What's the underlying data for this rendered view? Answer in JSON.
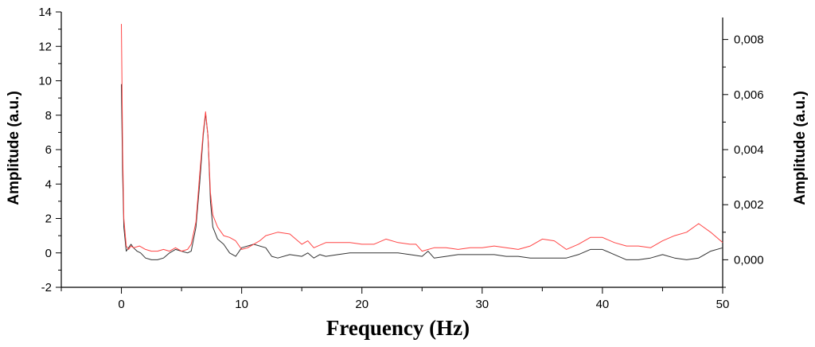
{
  "chart_data": {
    "type": "line",
    "title": "",
    "xlabel": "Frequency (Hz)",
    "ylabel_left": "Amplitude (a.u.)",
    "ylabel_right": "Amplitude (a.u.)",
    "xlim": [
      -5,
      50
    ],
    "ylim_left": [
      -2,
      14
    ],
    "ylim_right": [
      -0.001,
      0.009
    ],
    "x_ticks": [
      0,
      10,
      20,
      30,
      40,
      50
    ],
    "x_tick_labels": [
      "0",
      "10",
      "20",
      "30",
      "40",
      "50"
    ],
    "y_left_ticks": [
      -2,
      0,
      2,
      4,
      6,
      8,
      10,
      12,
      14
    ],
    "y_left_tick_labels": [
      "-2",
      "0",
      "2",
      "4",
      "6",
      "8",
      "10",
      "12",
      "14"
    ],
    "y_right_ticks": [
      0,
      0.002,
      0.004,
      0.006,
      0.008
    ],
    "y_right_tick_labels": [
      "0,000",
      "0,002",
      "0,004",
      "0,006",
      "0,008"
    ],
    "grid": false,
    "legend": "none",
    "series": [
      {
        "axis": "left",
        "color": "#333333",
        "points": [
          [
            0,
            9.8
          ],
          [
            0.1,
            4.5
          ],
          [
            0.2,
            1.5
          ],
          [
            0.4,
            0.1
          ],
          [
            0.6,
            0.3
          ],
          [
            0.8,
            0.5
          ],
          [
            1,
            0.3
          ],
          [
            1.3,
            0.1
          ],
          [
            1.6,
            0.0
          ],
          [
            2,
            -0.3
          ],
          [
            2.5,
            -0.4
          ],
          [
            3,
            -0.4
          ],
          [
            3.5,
            -0.3
          ],
          [
            4,
            0.0
          ],
          [
            4.5,
            0.2
          ],
          [
            5,
            0.1
          ],
          [
            5.5,
            0.0
          ],
          [
            5.8,
            0.1
          ],
          [
            6.2,
            1.5
          ],
          [
            6.5,
            4.0
          ],
          [
            6.8,
            6.8
          ],
          [
            7.0,
            8.1
          ],
          [
            7.2,
            6.8
          ],
          [
            7.4,
            3.0
          ],
          [
            7.6,
            1.5
          ],
          [
            8,
            0.8
          ],
          [
            8.5,
            0.5
          ],
          [
            9,
            0.0
          ],
          [
            9.5,
            -0.2
          ],
          [
            10,
            0.3
          ],
          [
            11,
            0.5
          ],
          [
            12,
            0.3
          ],
          [
            12.5,
            -0.2
          ],
          [
            13,
            -0.3
          ],
          [
            14,
            -0.1
          ],
          [
            15,
            -0.2
          ],
          [
            15.5,
            0.0
          ],
          [
            16,
            -0.3
          ],
          [
            16.5,
            -0.1
          ],
          [
            17,
            -0.2
          ],
          [
            18,
            -0.1
          ],
          [
            19,
            0.0
          ],
          [
            20,
            0.0
          ],
          [
            21,
            0.0
          ],
          [
            22,
            0.0
          ],
          [
            23,
            0.0
          ],
          [
            24,
            -0.1
          ],
          [
            25,
            -0.2
          ],
          [
            25.5,
            0.1
          ],
          [
            26,
            -0.3
          ],
          [
            27,
            -0.2
          ],
          [
            28,
            -0.1
          ],
          [
            29,
            -0.1
          ],
          [
            30,
            -0.1
          ],
          [
            31,
            -0.1
          ],
          [
            32,
            -0.2
          ],
          [
            33,
            -0.2
          ],
          [
            34,
            -0.3
          ],
          [
            35,
            -0.3
          ],
          [
            36,
            -0.3
          ],
          [
            37,
            -0.3
          ],
          [
            38,
            -0.1
          ],
          [
            39,
            0.2
          ],
          [
            40,
            0.2
          ],
          [
            41,
            -0.1
          ],
          [
            42,
            -0.4
          ],
          [
            43,
            -0.4
          ],
          [
            44,
            -0.3
          ],
          [
            45,
            -0.1
          ],
          [
            46,
            -0.3
          ],
          [
            47,
            -0.4
          ],
          [
            48,
            -0.3
          ],
          [
            49,
            0.1
          ],
          [
            50,
            0.3
          ]
        ]
      },
      {
        "axis": "left",
        "color": "#ff4444",
        "points": [
          [
            0,
            13.3
          ],
          [
            0.1,
            6.0
          ],
          [
            0.2,
            2.0
          ],
          [
            0.4,
            0.4
          ],
          [
            0.6,
            0.2
          ],
          [
            0.8,
            0.4
          ],
          [
            1,
            0.3
          ],
          [
            1.5,
            0.4
          ],
          [
            2,
            0.2
          ],
          [
            2.5,
            0.1
          ],
          [
            3,
            0.1
          ],
          [
            3.5,
            0.2
          ],
          [
            4,
            0.1
          ],
          [
            4.5,
            0.3
          ],
          [
            5,
            0.1
          ],
          [
            5.5,
            0.2
          ],
          [
            5.8,
            0.5
          ],
          [
            6.2,
            1.8
          ],
          [
            6.5,
            4.5
          ],
          [
            6.8,
            7.0
          ],
          [
            7.0,
            8.2
          ],
          [
            7.2,
            6.8
          ],
          [
            7.4,
            3.5
          ],
          [
            7.6,
            2.2
          ],
          [
            8,
            1.5
          ],
          [
            8.5,
            1.0
          ],
          [
            9,
            0.9
          ],
          [
            9.5,
            0.7
          ],
          [
            10,
            0.2
          ],
          [
            10.5,
            0.3
          ],
          [
            11,
            0.5
          ],
          [
            11.5,
            0.7
          ],
          [
            12,
            1.0
          ],
          [
            13,
            1.2
          ],
          [
            14,
            1.1
          ],
          [
            15,
            0.5
          ],
          [
            15.5,
            0.7
          ],
          [
            16,
            0.3
          ],
          [
            17,
            0.6
          ],
          [
            18,
            0.6
          ],
          [
            19,
            0.6
          ],
          [
            20,
            0.5
          ],
          [
            21,
            0.5
          ],
          [
            22,
            0.8
          ],
          [
            23,
            0.6
          ],
          [
            24,
            0.5
          ],
          [
            24.5,
            0.5
          ],
          [
            25,
            0.1
          ],
          [
            26,
            0.3
          ],
          [
            27,
            0.3
          ],
          [
            28,
            0.2
          ],
          [
            29,
            0.3
          ],
          [
            30,
            0.3
          ],
          [
            31,
            0.4
          ],
          [
            32,
            0.3
          ],
          [
            33,
            0.2
          ],
          [
            34,
            0.4
          ],
          [
            35,
            0.8
          ],
          [
            36,
            0.7
          ],
          [
            37,
            0.2
          ],
          [
            38,
            0.5
          ],
          [
            39,
            0.9
          ],
          [
            40,
            0.9
          ],
          [
            41,
            0.6
          ],
          [
            42,
            0.4
          ],
          [
            43,
            0.4
          ],
          [
            44,
            0.3
          ],
          [
            45,
            0.7
          ],
          [
            46,
            1.0
          ],
          [
            47,
            1.2
          ],
          [
            48,
            1.7
          ],
          [
            49,
            1.2
          ],
          [
            50,
            0.6
          ]
        ]
      }
    ]
  }
}
